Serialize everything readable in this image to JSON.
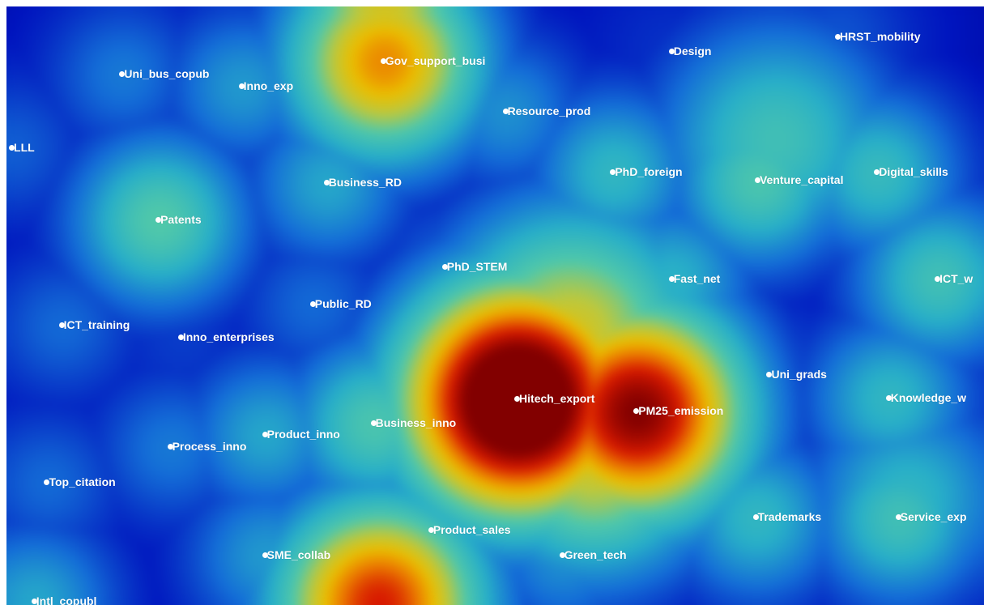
{
  "chart_data": {
    "type": "scatter",
    "subtype": "density-map",
    "title": "",
    "xlabel": "",
    "ylabel": "",
    "grid": false,
    "legend": "none",
    "colormap": [
      "#00008b",
      "#0000cd",
      "#1e90ff",
      "#20b2aa",
      "#9acd32",
      "#ffd700",
      "#ff8c00",
      "#ff0000",
      "#8b0000"
    ],
    "points": [
      {
        "label": "HRST_mobility",
        "x": 85.0,
        "y": 5.0,
        "density": 0.08
      },
      {
        "label": "Design",
        "x": 68.0,
        "y": 7.5,
        "density": 0.02
      },
      {
        "label": "Gov_support_busi",
        "x": 38.5,
        "y": 9.0,
        "density": 0.65
      },
      {
        "label": "Uni_bus_copub",
        "x": 11.8,
        "y": 11.2,
        "density": 0.15
      },
      {
        "label": "Inno_exp",
        "x": 24.0,
        "y": 13.2,
        "density": 0.22
      },
      {
        "label": "Resource_prod",
        "x": 51.0,
        "y": 17.5,
        "density": 0.2
      },
      {
        "label": "LLL",
        "x": 0.5,
        "y": 23.5,
        "density": 0.1
      },
      {
        "label": "PhD_foreign",
        "x": 62.0,
        "y": 27.6,
        "density": 0.3
      },
      {
        "label": "Venture_capital",
        "x": 76.8,
        "y": 29.0,
        "density": 0.38
      },
      {
        "label": "Digital_skills",
        "x": 89.0,
        "y": 27.6,
        "density": 0.32
      },
      {
        "label": "Business_RD",
        "x": 32.7,
        "y": 29.4,
        "density": 0.25
      },
      {
        "label": "Patents",
        "x": 15.5,
        "y": 35.6,
        "density": 0.4
      },
      {
        "label": "PhD_STEM",
        "x": 44.8,
        "y": 43.4,
        "density": 0.1
      },
      {
        "label": "Fast_net",
        "x": 68.0,
        "y": 45.4,
        "density": 0.28
      },
      {
        "label": "ICT_w",
        "x": 95.2,
        "y": 45.4,
        "density": 0.35
      },
      {
        "label": "Public_RD",
        "x": 31.3,
        "y": 49.6,
        "density": 0.12
      },
      {
        "label": "ICT_training",
        "x": 5.6,
        "y": 53.2,
        "density": 0.12
      },
      {
        "label": "Inno_enterprises",
        "x": 17.8,
        "y": 55.2,
        "density": 0.04
      },
      {
        "label": "Uni_grads",
        "x": 78.0,
        "y": 61.5,
        "density": 0.08
      },
      {
        "label": "Hitech_export",
        "x": 52.2,
        "y": 65.5,
        "density": 1.0
      },
      {
        "label": "Knowledge_w",
        "x": 90.2,
        "y": 65.3,
        "density": 0.3
      },
      {
        "label": "PM25_emission",
        "x": 64.4,
        "y": 67.5,
        "density": 0.85
      },
      {
        "label": "Business_inno",
        "x": 37.5,
        "y": 69.6,
        "density": 0.38
      },
      {
        "label": "Product_inno",
        "x": 26.4,
        "y": 71.4,
        "density": 0.25
      },
      {
        "label": "Process_inno",
        "x": 16.7,
        "y": 73.5,
        "density": 0.15
      },
      {
        "label": "Top_citation",
        "x": 4.1,
        "y": 79.4,
        "density": 0.12
      },
      {
        "label": "Trademarks",
        "x": 76.6,
        "y": 85.3,
        "density": 0.3
      },
      {
        "label": "Service_exp",
        "x": 91.2,
        "y": 85.3,
        "density": 0.35
      },
      {
        "label": "Product_sales",
        "x": 43.4,
        "y": 87.4,
        "density": 0.28
      },
      {
        "label": "SME_collab",
        "x": 26.4,
        "y": 91.6,
        "density": 0.22
      },
      {
        "label": "Green_tech",
        "x": 56.8,
        "y": 91.6,
        "density": 0.2
      },
      {
        "label": "Intl_copubl",
        "x": 2.8,
        "y": 99.3,
        "density": 0.25
      }
    ]
  }
}
